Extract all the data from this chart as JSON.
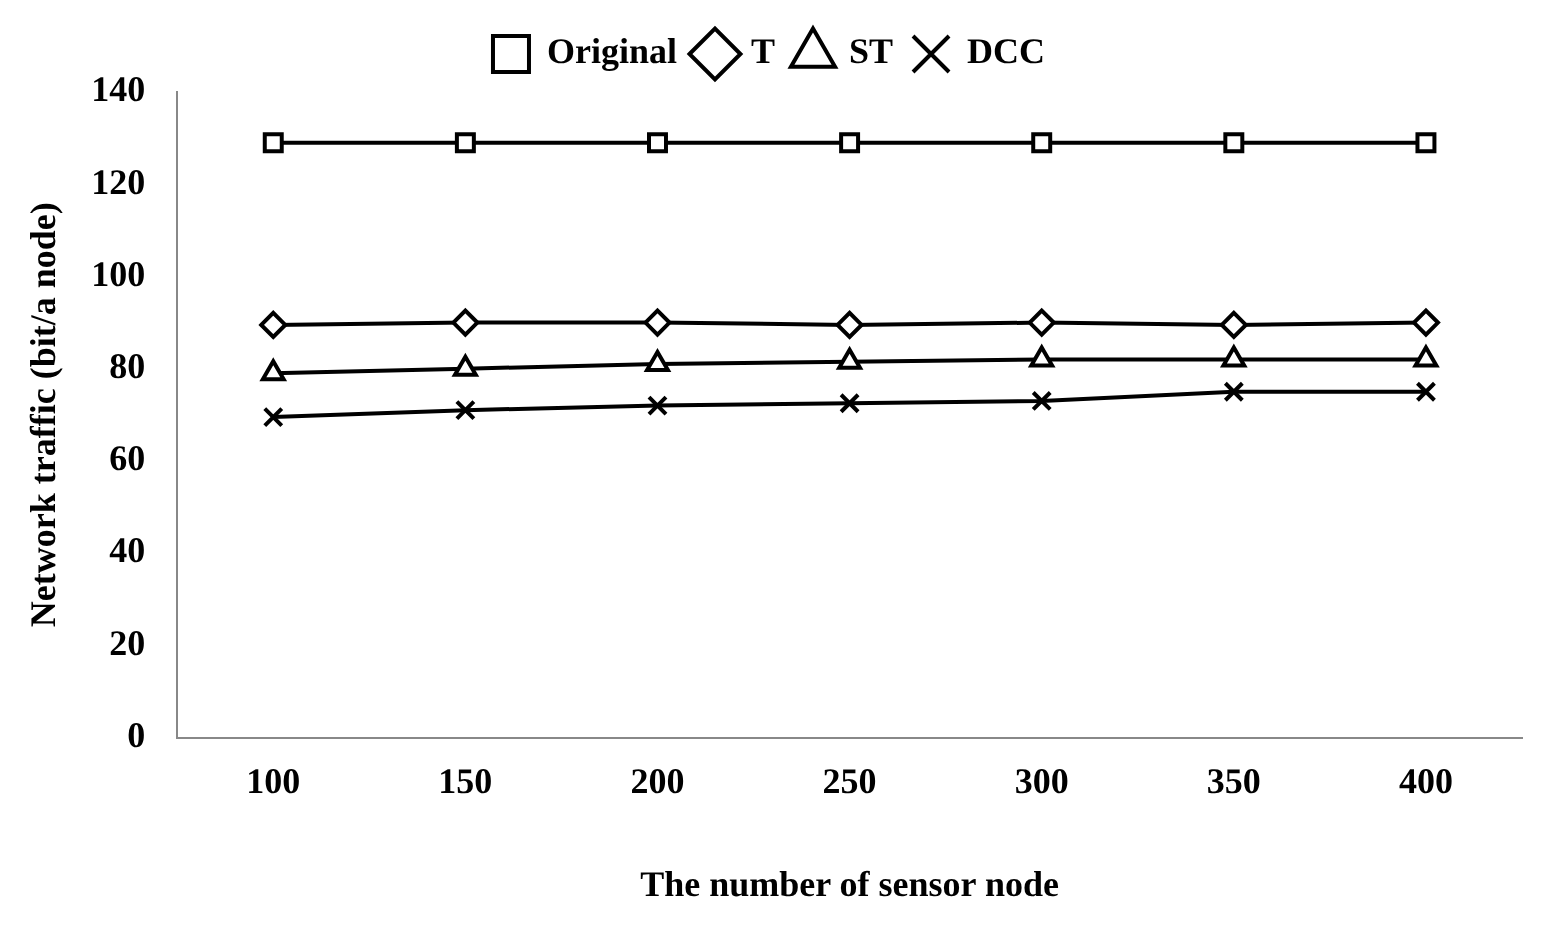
{
  "chart_data": {
    "type": "line",
    "xlabel": "The number of sensor node",
    "ylabel": "Network traffic (bit/a node)",
    "categories": [
      "100",
      "150",
      "200",
      "250",
      "300",
      "350",
      "400"
    ],
    "series": [
      {
        "name": "Original",
        "color": "#000000",
        "marker": "square",
        "values": [
          129,
          129,
          129,
          129,
          129,
          129,
          129
        ]
      },
      {
        "name": "T",
        "color": "#000000",
        "marker": "diamond",
        "values": [
          89.5,
          90,
          90,
          89.5,
          90,
          89.5,
          90
        ]
      },
      {
        "name": "ST",
        "color": "#000000",
        "marker": "triangle",
        "values": [
          79,
          80,
          81,
          81.5,
          82,
          82,
          82
        ]
      },
      {
        "name": "DCC",
        "color": "#000000",
        "marker": "cross",
        "values": [
          69.5,
          71,
          72,
          72.5,
          73,
          75,
          75
        ]
      }
    ],
    "ylim": [
      0,
      140
    ],
    "yticks": [
      0,
      20,
      40,
      60,
      80,
      100,
      120,
      140
    ],
    "grid": false,
    "legend": "top"
  }
}
